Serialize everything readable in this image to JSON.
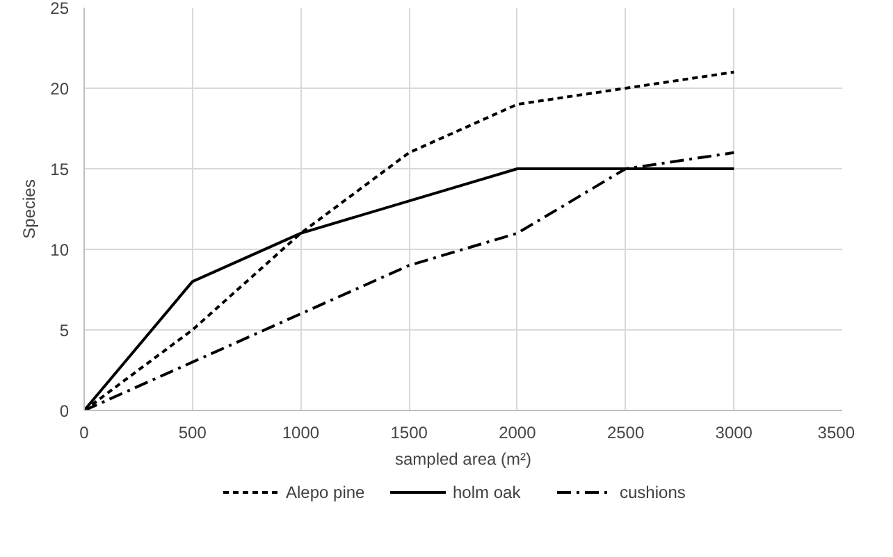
{
  "chart_data": {
    "type": "line",
    "xlabel": "sampled area (m²)",
    "ylabel": "Species",
    "x": [
      0,
      500,
      1000,
      1500,
      2000,
      2500,
      3000
    ],
    "series": [
      {
        "name": "Alepo pine",
        "color": "#000000",
        "line_style": "dashed",
        "values": [
          0,
          5,
          11,
          16,
          19,
          20,
          21
        ]
      },
      {
        "name": "holm oak",
        "color": "#000000",
        "line_style": "solid",
        "values": [
          0,
          8,
          11,
          13,
          15,
          15,
          15
        ]
      },
      {
        "name": "cushions",
        "color": "#000000",
        "line_style": "dashdot",
        "values": [
          0,
          3,
          6,
          9,
          11,
          15,
          16
        ]
      }
    ],
    "xlim": [
      0,
      3500
    ],
    "xticks": [
      0,
      500,
      1000,
      1500,
      2000,
      2500,
      3000,
      3500
    ],
    "ylim": [
      0,
      25
    ],
    "yticks": [
      0,
      5,
      10,
      15,
      20,
      25
    ],
    "grid": true,
    "legend": "bottom",
    "marker": "none"
  }
}
